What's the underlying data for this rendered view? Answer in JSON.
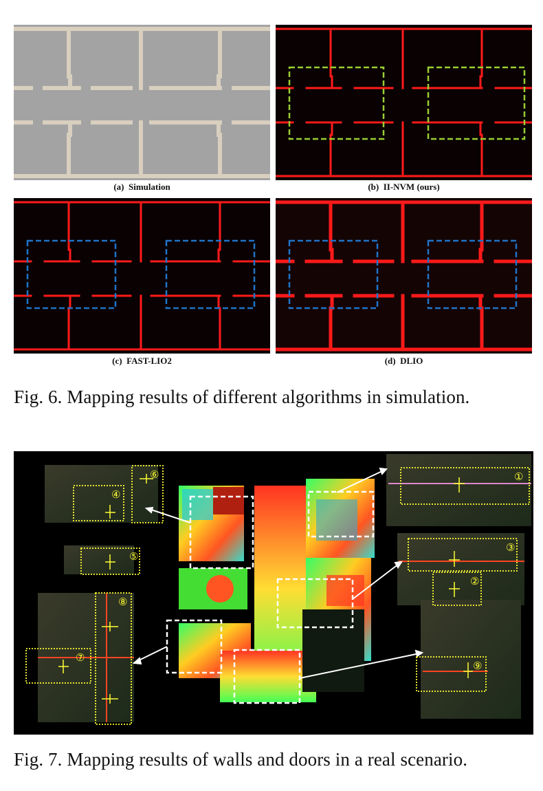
{
  "figure6": {
    "panels": [
      {
        "label": "(a)",
        "name": "Simulation"
      },
      {
        "label": "(b)",
        "name": "II-NVM (ours)"
      },
      {
        "label": "(c)",
        "name": "FAST-LIO2"
      },
      {
        "label": "(d)",
        "name": "DLIO"
      }
    ],
    "caption": "Fig. 6. Mapping results of different algorithms in simulation.",
    "colors": {
      "sim_bg": "#a3a3a3",
      "sim_wall": "#d9cfbf",
      "map_wall": "#ff1a1a",
      "ours_box": "#9acd32",
      "other_box": "#1e73c8"
    }
  },
  "figure7": {
    "markers": [
      "①",
      "②",
      "③",
      "④",
      "⑤",
      "⑥",
      "⑦",
      "⑧",
      "⑨"
    ],
    "caption": "Fig. 7. Mapping results of walls and doors in a real scenario.",
    "colors": {
      "highlight": "#ffff33",
      "roi": "#ffffff"
    }
  }
}
